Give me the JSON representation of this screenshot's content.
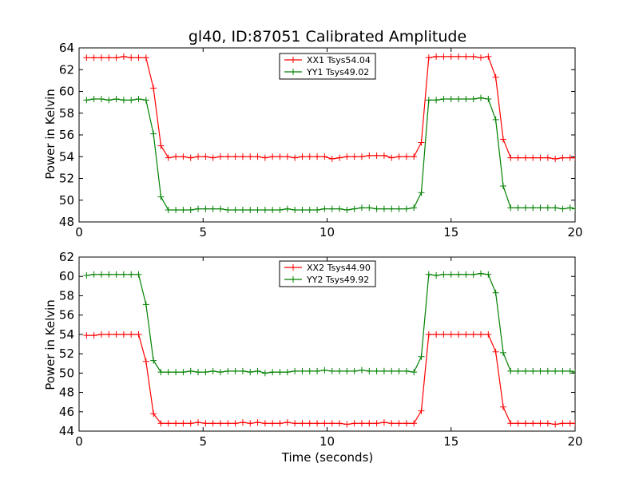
{
  "figure": {
    "title": "gl40, ID:87051 Calibrated Amplitude",
    "xlabel": "Time (seconds)"
  },
  "chart_data": [
    {
      "type": "line",
      "title": "gl40, ID:87051 Calibrated Amplitude",
      "xlabel": "",
      "ylabel": "Power in Kelvin",
      "xlim": [
        0,
        20
      ],
      "ylim": [
        48,
        64
      ],
      "xticks": [
        "0",
        "5",
        "10",
        "15",
        "20"
      ],
      "yticks": [
        "48",
        "50",
        "52",
        "54",
        "56",
        "58",
        "60",
        "62",
        "64"
      ],
      "legend_position": "top-center",
      "grid": false,
      "series": [
        {
          "name": "XX1 Tsys54.04",
          "color": "#ff0000",
          "x": [
            0.3,
            0.6,
            0.9,
            1.2,
            1.5,
            1.8,
            2.1,
            2.4,
            2.7,
            3.0,
            3.3,
            3.6,
            3.9,
            4.2,
            4.5,
            4.8,
            5.1,
            5.4,
            5.7,
            6.0,
            6.3,
            6.6,
            6.9,
            7.2,
            7.5,
            7.8,
            8.1,
            8.4,
            8.7,
            9.0,
            9.3,
            9.6,
            9.9,
            10.2,
            10.5,
            10.8,
            11.1,
            11.4,
            11.7,
            12.0,
            12.3,
            12.6,
            12.9,
            13.2,
            13.5,
            13.8,
            14.1,
            14.4,
            14.7,
            15.0,
            15.3,
            15.6,
            15.9,
            16.2,
            16.5,
            16.8,
            17.1,
            17.4,
            17.7,
            18.0,
            18.3,
            18.6,
            18.9,
            19.2,
            19.5,
            19.8,
            20.0
          ],
          "y": [
            63.1,
            63.1,
            63.1,
            63.1,
            63.1,
            63.2,
            63.1,
            63.1,
            63.1,
            60.3,
            55.0,
            53.9,
            54.0,
            54.0,
            53.9,
            54.0,
            54.0,
            53.9,
            54.0,
            54.0,
            54.0,
            54.0,
            54.0,
            54.0,
            53.9,
            54.0,
            54.0,
            54.0,
            53.9,
            54.0,
            54.0,
            54.0,
            54.0,
            53.8,
            53.9,
            54.0,
            54.0,
            54.0,
            54.1,
            54.1,
            54.1,
            53.9,
            54.0,
            54.0,
            54.0,
            55.3,
            63.1,
            63.2,
            63.2,
            63.2,
            63.2,
            63.2,
            63.2,
            63.1,
            63.2,
            61.3,
            55.6,
            53.9,
            53.9,
            53.9,
            53.9,
            53.9,
            53.9,
            53.8,
            53.9,
            53.9,
            53.9
          ]
        },
        {
          "name": "YY1 Tsys49.02",
          "color": "#008000",
          "x": [
            0.3,
            0.6,
            0.9,
            1.2,
            1.5,
            1.8,
            2.1,
            2.4,
            2.7,
            3.0,
            3.3,
            3.6,
            3.9,
            4.2,
            4.5,
            4.8,
            5.1,
            5.4,
            5.7,
            6.0,
            6.3,
            6.6,
            6.9,
            7.2,
            7.5,
            7.8,
            8.1,
            8.4,
            8.7,
            9.0,
            9.3,
            9.6,
            9.9,
            10.2,
            10.5,
            10.8,
            11.1,
            11.4,
            11.7,
            12.0,
            12.3,
            12.6,
            12.9,
            13.2,
            13.5,
            13.8,
            14.1,
            14.4,
            14.7,
            15.0,
            15.3,
            15.6,
            15.9,
            16.2,
            16.5,
            16.8,
            17.1,
            17.4,
            17.7,
            18.0,
            18.3,
            18.6,
            18.9,
            19.2,
            19.5,
            19.8,
            20.0
          ],
          "y": [
            59.2,
            59.3,
            59.3,
            59.2,
            59.3,
            59.2,
            59.2,
            59.3,
            59.2,
            56.1,
            50.3,
            49.1,
            49.1,
            49.1,
            49.1,
            49.2,
            49.2,
            49.2,
            49.2,
            49.1,
            49.1,
            49.1,
            49.1,
            49.1,
            49.1,
            49.1,
            49.1,
            49.2,
            49.1,
            49.1,
            49.1,
            49.1,
            49.2,
            49.2,
            49.2,
            49.1,
            49.2,
            49.3,
            49.3,
            49.2,
            49.2,
            49.2,
            49.2,
            49.2,
            49.3,
            50.7,
            59.2,
            59.2,
            59.3,
            59.3,
            59.3,
            59.3,
            59.3,
            59.4,
            59.3,
            57.4,
            51.3,
            49.3,
            49.3,
            49.3,
            49.3,
            49.3,
            49.3,
            49.3,
            49.2,
            49.3,
            49.2
          ]
        }
      ]
    },
    {
      "type": "line",
      "title": "",
      "xlabel": "Time (seconds)",
      "ylabel": "Power in Kelvin",
      "xlim": [
        0,
        20
      ],
      "ylim": [
        44,
        62
      ],
      "xticks": [
        "0",
        "5",
        "10",
        "15",
        "20"
      ],
      "yticks": [
        "44",
        "46",
        "48",
        "50",
        "52",
        "54",
        "56",
        "58",
        "60",
        "62"
      ],
      "legend_position": "top-center",
      "grid": false,
      "series": [
        {
          "name": "XX2 Tsys44.90",
          "color": "#ff0000",
          "x": [
            0.3,
            0.6,
            0.9,
            1.2,
            1.5,
            1.8,
            2.1,
            2.4,
            2.7,
            3.0,
            3.3,
            3.6,
            3.9,
            4.2,
            4.5,
            4.8,
            5.1,
            5.4,
            5.7,
            6.0,
            6.3,
            6.6,
            6.9,
            7.2,
            7.5,
            7.8,
            8.1,
            8.4,
            8.7,
            9.0,
            9.3,
            9.6,
            9.9,
            10.2,
            10.5,
            10.8,
            11.1,
            11.4,
            11.7,
            12.0,
            12.3,
            12.6,
            12.9,
            13.2,
            13.5,
            13.8,
            14.1,
            14.4,
            14.7,
            15.0,
            15.3,
            15.6,
            15.9,
            16.2,
            16.5,
            16.8,
            17.1,
            17.4,
            17.7,
            18.0,
            18.3,
            18.6,
            18.9,
            19.2,
            19.5,
            19.8,
            20.0
          ],
          "y": [
            53.9,
            53.9,
            54.0,
            54.0,
            54.0,
            54.0,
            54.0,
            54.0,
            51.2,
            45.8,
            44.8,
            44.8,
            44.8,
            44.8,
            44.8,
            44.9,
            44.8,
            44.8,
            44.8,
            44.8,
            44.8,
            44.9,
            44.8,
            44.9,
            44.8,
            44.8,
            44.8,
            44.9,
            44.8,
            44.8,
            44.8,
            44.8,
            44.8,
            44.8,
            44.8,
            44.7,
            44.8,
            44.8,
            44.8,
            44.8,
            44.9,
            44.8,
            44.8,
            44.8,
            44.8,
            46.1,
            54.0,
            54.0,
            54.0,
            54.0,
            54.0,
            54.0,
            54.0,
            54.0,
            54.0,
            52.2,
            46.5,
            44.8,
            44.8,
            44.8,
            44.8,
            44.8,
            44.8,
            44.7,
            44.8,
            44.8,
            44.8
          ]
        },
        {
          "name": "YY2 Tsys49.92",
          "color": "#008000",
          "x": [
            0.3,
            0.6,
            0.9,
            1.2,
            1.5,
            1.8,
            2.1,
            2.4,
            2.7,
            3.0,
            3.3,
            3.6,
            3.9,
            4.2,
            4.5,
            4.8,
            5.1,
            5.4,
            5.7,
            6.0,
            6.3,
            6.6,
            6.9,
            7.2,
            7.5,
            7.8,
            8.1,
            8.4,
            8.7,
            9.0,
            9.3,
            9.6,
            9.9,
            10.2,
            10.5,
            10.8,
            11.1,
            11.4,
            11.7,
            12.0,
            12.3,
            12.6,
            12.9,
            13.2,
            13.5,
            13.8,
            14.1,
            14.4,
            14.7,
            15.0,
            15.3,
            15.6,
            15.9,
            16.2,
            16.5,
            16.8,
            17.1,
            17.4,
            17.7,
            18.0,
            18.3,
            18.6,
            18.9,
            19.2,
            19.5,
            19.8,
            20.0
          ],
          "y": [
            60.1,
            60.2,
            60.2,
            60.2,
            60.2,
            60.2,
            60.2,
            60.2,
            57.1,
            51.3,
            50.1,
            50.1,
            50.1,
            50.1,
            50.2,
            50.1,
            50.1,
            50.2,
            50.1,
            50.2,
            50.2,
            50.2,
            50.1,
            50.2,
            50.0,
            50.1,
            50.1,
            50.1,
            50.2,
            50.2,
            50.2,
            50.2,
            50.3,
            50.2,
            50.2,
            50.2,
            50.2,
            50.3,
            50.2,
            50.2,
            50.2,
            50.2,
            50.2,
            50.2,
            50.1,
            51.7,
            60.2,
            60.1,
            60.2,
            60.2,
            60.2,
            60.2,
            60.2,
            60.3,
            60.2,
            58.3,
            52.1,
            50.2,
            50.2,
            50.2,
            50.2,
            50.2,
            50.2,
            50.2,
            50.2,
            50.2,
            50.1
          ]
        }
      ]
    }
  ]
}
